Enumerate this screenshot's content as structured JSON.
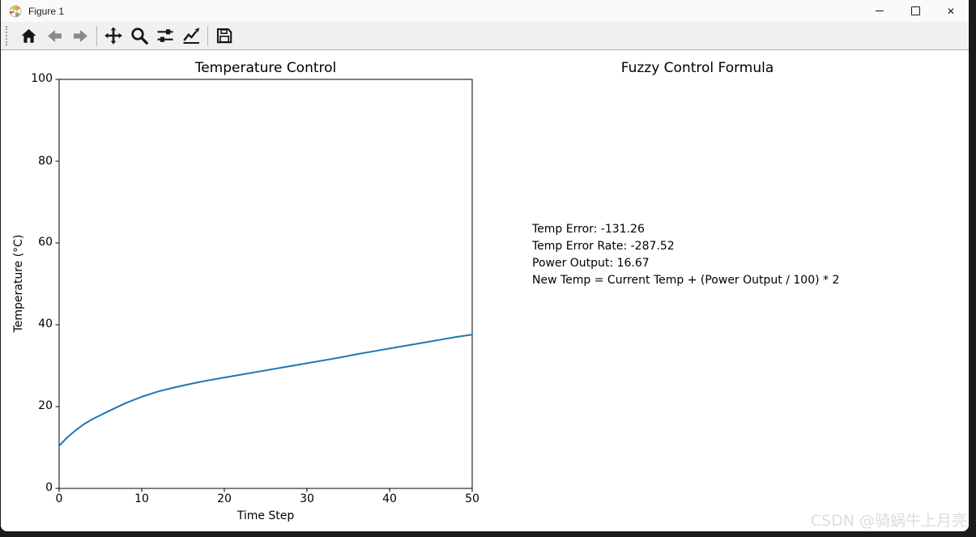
{
  "window": {
    "title": "Figure 1",
    "app_icon": "matplotlib-logo-icon",
    "controls": [
      "minimize",
      "maximize",
      "close"
    ]
  },
  "toolbar": {
    "buttons": [
      {
        "name": "home",
        "icon": "home-icon"
      },
      {
        "name": "back",
        "icon": "arrow-left-icon"
      },
      {
        "name": "forward",
        "icon": "arrow-right-icon"
      },
      {
        "name": "pan",
        "icon": "move-icon"
      },
      {
        "name": "zoom",
        "icon": "magnifier-icon"
      },
      {
        "name": "configure-subplots",
        "icon": "sliders-icon"
      },
      {
        "name": "edit-parameters",
        "icon": "chart-line-icon"
      },
      {
        "name": "save",
        "icon": "floppy-disk-icon"
      }
    ]
  },
  "formula_panel": {
    "title": "Fuzzy Control Formula",
    "lines": [
      "Temp Error: -131.26",
      "Temp Error Rate: -287.52",
      "Power Output: 16.67",
      "New Temp = Current Temp + (Power Output / 100) * 2"
    ]
  },
  "watermark": "CSDN @骑蜗牛上月亮",
  "chart_data": {
    "type": "line",
    "title": "Temperature Control",
    "xlabel": "Time Step",
    "ylabel": "Temperature (°C)",
    "xlim": [
      0,
      50
    ],
    "ylim": [
      0,
      100
    ],
    "xticks": [
      0,
      10,
      20,
      30,
      40,
      50
    ],
    "yticks": [
      0,
      20,
      40,
      60,
      80,
      100
    ],
    "grid": false,
    "legend": "none",
    "line_color": "#1f77b4",
    "x": [
      0,
      1,
      2,
      3,
      4,
      5,
      6,
      8,
      10,
      12,
      14,
      16,
      18,
      20,
      22,
      24,
      26,
      28,
      30,
      32,
      34,
      36,
      38,
      40,
      42,
      44,
      46,
      48,
      50
    ],
    "y": [
      10.4,
      12.5,
      14.2,
      15.7,
      16.9,
      17.9,
      18.9,
      20.8,
      22.4,
      23.7,
      24.7,
      25.6,
      26.4,
      27.1,
      27.8,
      28.5,
      29.2,
      29.9,
      30.6,
      31.3,
      32.0,
      32.8,
      33.5,
      34.2,
      34.9,
      35.6,
      36.3,
      37.0,
      37.6
    ]
  }
}
